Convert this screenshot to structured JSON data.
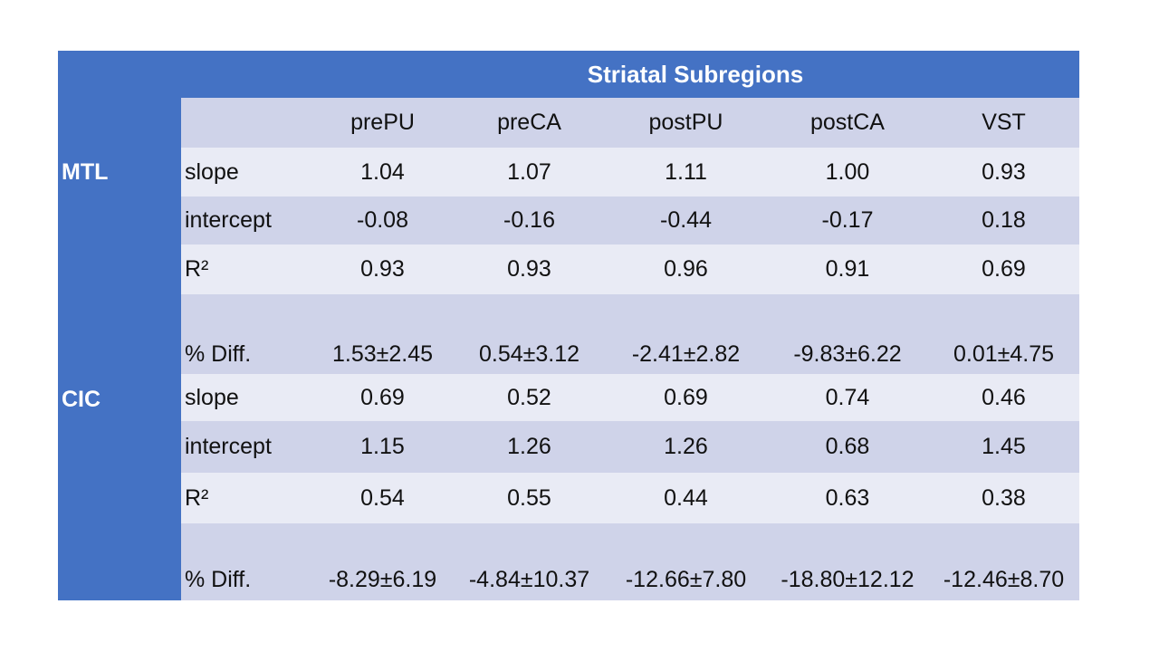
{
  "table": {
    "title": "Striatal Subregions",
    "columns": [
      "prePU",
      "preCA",
      "postPU",
      "postCA",
      "VST"
    ],
    "row_groups": [
      {
        "label": "MTL"
      },
      {
        "label": "CIC"
      }
    ],
    "rows": [
      {
        "label": "slope",
        "values": [
          "1.04",
          "1.07",
          "1.11",
          "1.00",
          "0.93"
        ]
      },
      {
        "label": "intercept",
        "values": [
          "-0.08",
          "-0.16",
          "-0.44",
          "-0.17",
          "0.18"
        ]
      },
      {
        "label": "R²",
        "values": [
          "0.93",
          "0.93",
          "0.96",
          "0.91",
          "0.69"
        ]
      },
      {
        "label": "",
        "values": [
          "",
          "",
          "",
          "",
          ""
        ]
      },
      {
        "label": "% Diff.",
        "values": [
          "1.53±2.45",
          "0.54±3.12",
          "-2.41±2.82",
          "-9.83±6.22",
          "0.01±4.75"
        ]
      },
      {
        "label": "slope",
        "values": [
          "0.69",
          "0.52",
          "0.69",
          "0.74",
          "0.46"
        ]
      },
      {
        "label": "intercept",
        "values": [
          "1.15",
          "1.26",
          "1.26",
          "0.68",
          "1.45"
        ]
      },
      {
        "label": "R²",
        "values": [
          "0.54",
          "0.55",
          "0.44",
          "0.63",
          "0.38"
        ]
      },
      {
        "label": "",
        "values": [
          "",
          "",
          "",
          "",
          ""
        ]
      },
      {
        "label": "% Diff.",
        "values": [
          "-8.29±6.19",
          "-4.84±10.37",
          "-12.66±7.80",
          "-18.80±12.12",
          "-12.46±8.70"
        ]
      }
    ],
    "colors": {
      "header_blue": "#4472C4",
      "band_dark": "#CFD3E9",
      "band_light": "#E9EBF5",
      "title_text": "#FFFFFF",
      "body_text": "#111111"
    }
  }
}
